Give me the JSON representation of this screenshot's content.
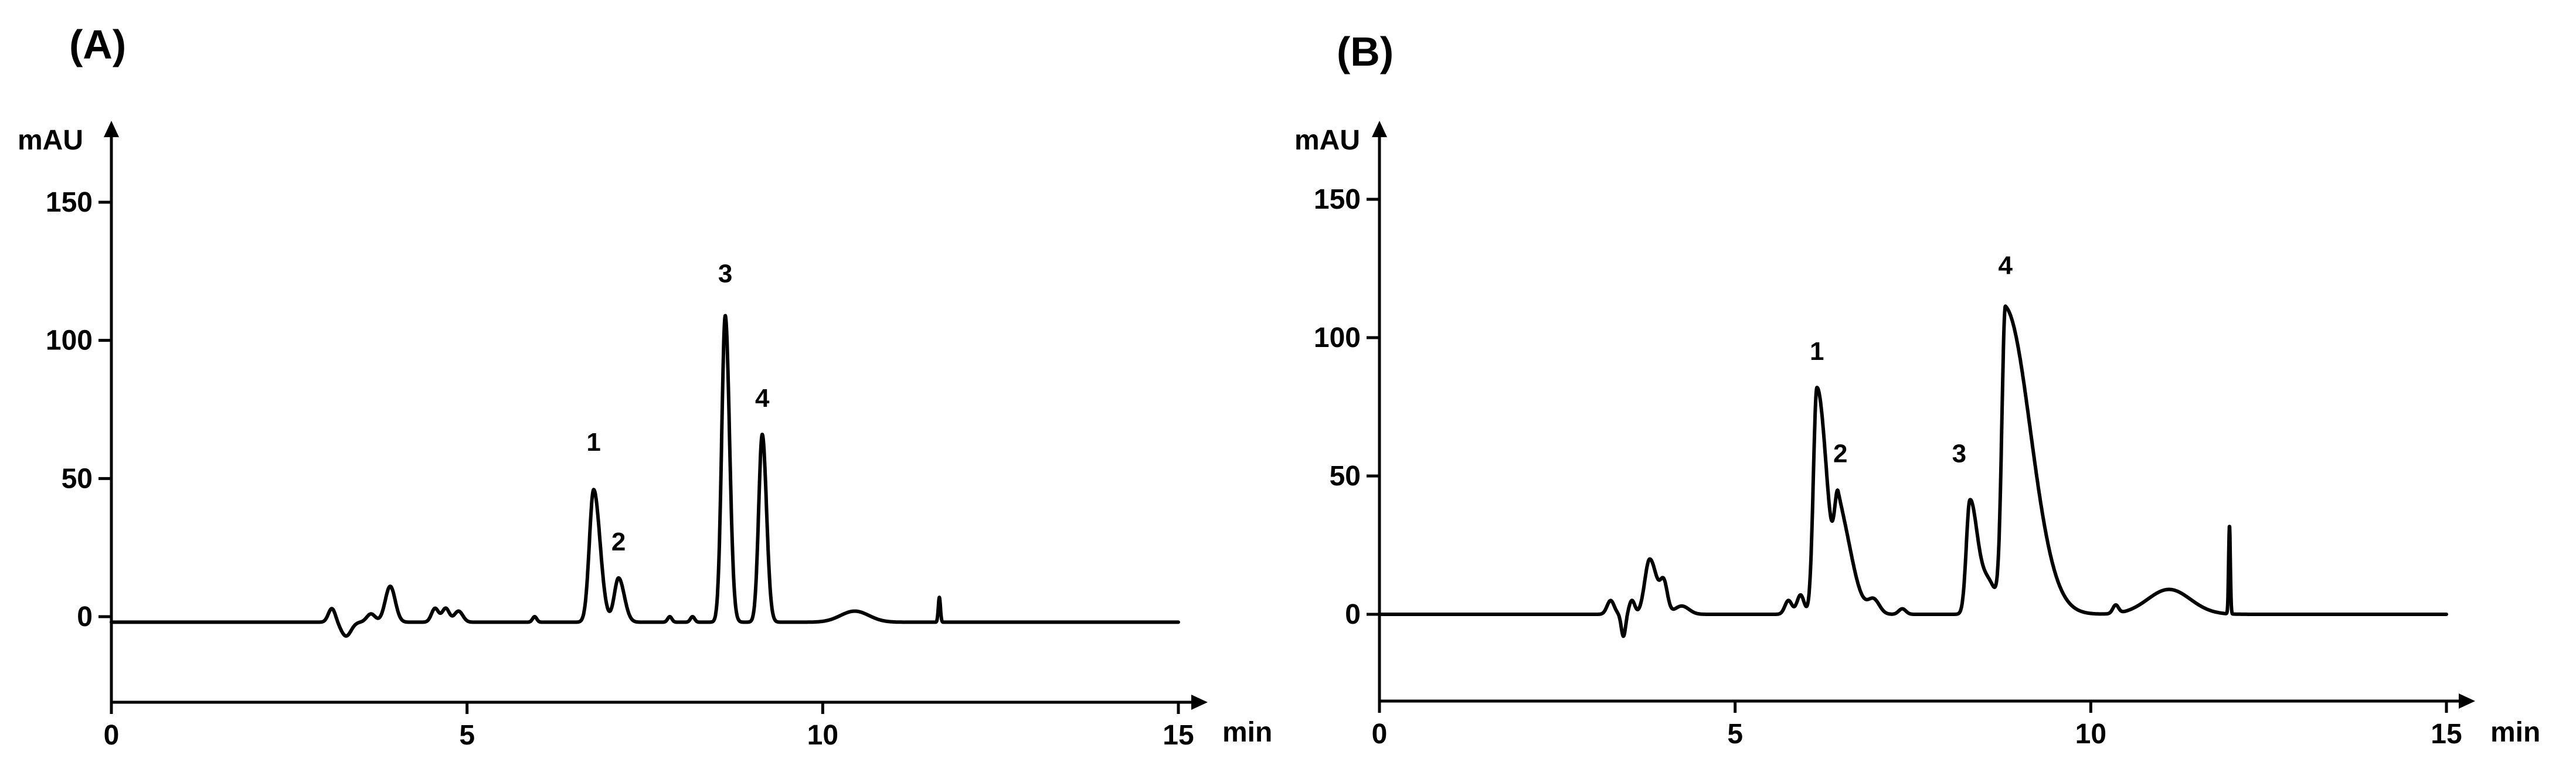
{
  "chart_data": [
    {
      "type": "line",
      "panel_label": "(A)",
      "ylabel": "mAU",
      "xlabel": "min",
      "xlim": [
        0,
        15
      ],
      "ylim": [
        -30,
        170
      ],
      "x_ticks": [
        0,
        5,
        10,
        15
      ],
      "x_tick_labels": [
        "0",
        "5",
        "10",
        "15"
      ],
      "y_ticks": [
        0,
        50,
        100,
        150
      ],
      "y_tick_labels": [
        "0",
        "50",
        "100",
        "150"
      ],
      "baseline": -2,
      "series": [
        {
          "peaks": [
            {
              "t": 3.1,
              "h": 5,
              "w": 0.05
            },
            {
              "t": 3.3,
              "h": -5,
              "w": 0.07
            },
            {
              "t": 3.65,
              "h": 3,
              "w": 0.06
            },
            {
              "t": 3.92,
              "h": 13,
              "w": 0.07
            },
            {
              "t": 4.55,
              "h": 5,
              "w": 0.05
            },
            {
              "t": 4.7,
              "h": 5,
              "w": 0.05
            },
            {
              "t": 4.88,
              "h": 4,
              "w": 0.06
            },
            {
              "t": 5.95,
              "h": 2,
              "w": 0.03
            },
            {
              "t": 6.78,
              "h": 48,
              "w": 0.06,
              "tail": 0.09
            },
            {
              "t": 7.13,
              "h": 16,
              "w": 0.06,
              "tail": 0.08
            },
            {
              "t": 7.85,
              "h": 2,
              "w": 0.03
            },
            {
              "t": 8.17,
              "h": 2,
              "w": 0.03
            },
            {
              "t": 8.63,
              "h": 111,
              "w": 0.05,
              "tail": 0.06
            },
            {
              "t": 9.15,
              "h": 68,
              "w": 0.05,
              "tail": 0.06
            },
            {
              "t": 10.45,
              "h": 4,
              "w": 0.2
            },
            {
              "t": 11.64,
              "h": 9,
              "w": 0.015
            }
          ],
          "start": 0,
          "end": 15
        }
      ],
      "peak_labels": [
        {
          "text": "1",
          "x": 6.78,
          "y": 60
        },
        {
          "text": "2",
          "x": 7.13,
          "y": 24
        },
        {
          "text": "3",
          "x": 8.63,
          "y": 121
        },
        {
          "text": "4",
          "x": 9.15,
          "y": 76
        }
      ]
    },
    {
      "type": "line",
      "panel_label": "(B)",
      "ylabel": "mAU",
      "xlabel": "min",
      "xlim": [
        0,
        15
      ],
      "ylim": [
        -30,
        170
      ],
      "x_ticks": [
        0,
        5,
        10,
        15
      ],
      "x_tick_labels": [
        "0",
        "5",
        "10",
        "15"
      ],
      "y_ticks": [
        0,
        50,
        100,
        150
      ],
      "y_tick_labels": [
        "0",
        "50",
        "100",
        "150"
      ],
      "baseline": 0,
      "series": [
        {
          "peaks": [
            {
              "t": 3.25,
              "h": 5,
              "w": 0.05
            },
            {
              "t": 3.43,
              "h": -8,
              "w": 0.03
            },
            {
              "t": 3.55,
              "h": 5,
              "w": 0.04
            },
            {
              "t": 3.8,
              "h": 20,
              "w": 0.07,
              "tail": 0.1
            },
            {
              "t": 4.0,
              "h": 10,
              "w": 0.05
            },
            {
              "t": 4.25,
              "h": 3,
              "w": 0.1
            },
            {
              "t": 5.75,
              "h": 5,
              "w": 0.05
            },
            {
              "t": 5.92,
              "h": 7,
              "w": 0.05
            },
            {
              "t": 6.15,
              "h": 82,
              "w": 0.05,
              "tail": 0.14
            },
            {
              "t": 6.45,
              "h": 36,
              "w": 0.05,
              "tail": 0.18
            },
            {
              "t": 6.95,
              "h": 5,
              "w": 0.08
            },
            {
              "t": 7.35,
              "h": 2,
              "w": 0.05
            },
            {
              "t": 8.3,
              "h": 40,
              "w": 0.05,
              "tail": 0.1
            },
            {
              "t": 8.55,
              "h": 12,
              "w": 0.12
            },
            {
              "t": 8.8,
              "h": 110,
              "w": 0.05,
              "tail": 0.35
            },
            {
              "t": 10.35,
              "h": 3,
              "w": 0.04
            },
            {
              "t": 11.1,
              "h": 9,
              "w": 0.3
            },
            {
              "t": 11.95,
              "h": 32,
              "w": 0.012
            }
          ],
          "start": 0,
          "end": 15
        }
      ],
      "peak_labels": [
        {
          "text": "1",
          "x": 6.15,
          "y": 92
        },
        {
          "text": "2",
          "x": 6.48,
          "y": 55
        },
        {
          "text": "3",
          "x": 8.15,
          "y": 55
        },
        {
          "text": "4",
          "x": 8.8,
          "y": 123
        }
      ]
    }
  ]
}
